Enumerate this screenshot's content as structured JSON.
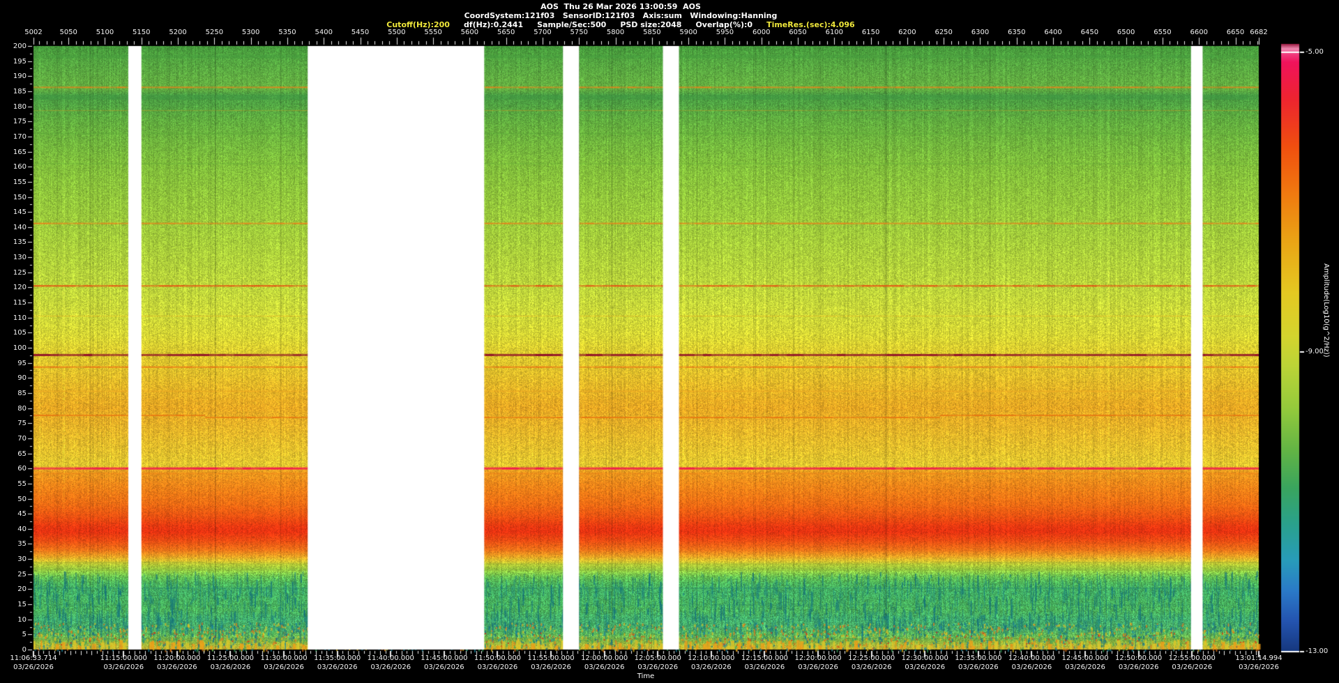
{
  "header": {
    "title_line": "AOS  Thu 26 Mar 2026 13:00:59  AOS",
    "config_line": "CoordSystem:121f03   SensorID:121f03   Axis:sum   Windowing:Hanning",
    "params": [
      {
        "text": "Cutoff(Hz):200",
        "color": "#efe73a"
      },
      {
        "text": "df(Hz):0.2441",
        "color": "#ffffff"
      },
      {
        "text": "Sample/Sec:500",
        "color": "#ffffff"
      },
      {
        "text": "PSD size:2048",
        "color": "#ffffff"
      },
      {
        "text": "Overlap(%):0",
        "color": "#ffffff"
      },
      {
        "text": "TimeRes.(sec):4.096",
        "color": "#efe73a"
      }
    ]
  },
  "chart_data": {
    "type": "heatmap",
    "title": "AOS vibration spectrogram",
    "x_axis": {
      "position": "top",
      "min": 5002,
      "max": 6682,
      "minor_step": 10,
      "ticks": [
        5002,
        5050,
        5100,
        5150,
        5200,
        5250,
        5300,
        5350,
        5400,
        5450,
        5500,
        5550,
        5600,
        5650,
        5700,
        5750,
        5800,
        5850,
        5900,
        5950,
        6000,
        6050,
        6100,
        6150,
        6200,
        6250,
        6300,
        6350,
        6400,
        6450,
        6500,
        6550,
        6600,
        6650,
        6682
      ]
    },
    "y_axis": {
      "min": 0,
      "max": 200,
      "major_step": 5,
      "ticks": [
        200,
        195,
        190,
        185,
        180,
        175,
        170,
        165,
        160,
        155,
        150,
        145,
        140,
        135,
        130,
        125,
        120,
        115,
        110,
        105,
        100,
        95,
        90,
        85,
        80,
        75,
        70,
        65,
        60,
        55,
        50,
        45,
        40,
        35,
        30,
        25,
        20,
        15,
        10,
        5,
        0
      ]
    },
    "time_axis": {
      "title": "Time",
      "start": "11:06:33.714",
      "end": "13:01:14.994",
      "labels": [
        {
          "t": "11:06:33.714",
          "d": "03/26/2026"
        },
        {
          "t": "11:15:00.000",
          "d": "03/26/2026"
        },
        {
          "t": "11:20:00.000",
          "d": "03/26/2026"
        },
        {
          "t": "11:25:00.000",
          "d": "03/26/2026"
        },
        {
          "t": "11:30:00.000",
          "d": "03/26/2026"
        },
        {
          "t": "11:35:00.000",
          "d": "03/26/2026"
        },
        {
          "t": "11:40:00.000",
          "d": "03/26/2026"
        },
        {
          "t": "11:45:00.000",
          "d": "03/26/2026"
        },
        {
          "t": "11:50:00.000",
          "d": "03/26/2026"
        },
        {
          "t": "11:55:00.000",
          "d": "03/26/2026"
        },
        {
          "t": "12:00:00.000",
          "d": "03/26/2026"
        },
        {
          "t": "12:05:00.000",
          "d": "03/26/2026"
        },
        {
          "t": "12:10:00.000",
          "d": "03/26/2026"
        },
        {
          "t": "12:15:00.000",
          "d": "03/26/2026"
        },
        {
          "t": "12:20:00.000",
          "d": "03/26/2026"
        },
        {
          "t": "12:25:00.000",
          "d": "03/26/2026"
        },
        {
          "t": "12:30:00.000",
          "d": "03/26/2026"
        },
        {
          "t": "12:35:00.000",
          "d": "03/26/2026"
        },
        {
          "t": "12:40:00.000",
          "d": "03/26/2026"
        },
        {
          "t": "12:45:00.000",
          "d": "03/26/2026"
        },
        {
          "t": "12:50:00.000",
          "d": "03/26/2026"
        },
        {
          "t": "12:55:00.000",
          "d": "03/26/2026"
        },
        {
          "t": "13:01:14.994",
          "d": "03/26/2026"
        }
      ]
    },
    "colorbar": {
      "label": "Amplitude(Log10(g^2/Hz))",
      "min": -13,
      "max": -5,
      "ticks": [
        {
          "value": -5,
          "label": "-5.00"
        },
        {
          "value": -9,
          "label": "-9.00"
        },
        {
          "value": -13,
          "label": "-13.00"
        }
      ],
      "gradient": [
        [
          0.0,
          "#9b1a40"
        ],
        [
          0.008,
          "#ee8ab2"
        ],
        [
          0.016,
          "#f04080"
        ],
        [
          0.03,
          "#f1135c"
        ],
        [
          0.09,
          "#ee2430"
        ],
        [
          0.17,
          "#f0500f"
        ],
        [
          0.25,
          "#f07c10"
        ],
        [
          0.33,
          "#eaa716"
        ],
        [
          0.41,
          "#e4c922"
        ],
        [
          0.48,
          "#d4d42e"
        ],
        [
          0.53,
          "#bcd437"
        ],
        [
          0.6,
          "#94ca3c"
        ],
        [
          0.67,
          "#62b445"
        ],
        [
          0.73,
          "#3aa55e"
        ],
        [
          0.79,
          "#2aa18c"
        ],
        [
          0.85,
          "#289cba"
        ],
        [
          0.9,
          "#2b7ac8"
        ],
        [
          0.95,
          "#2454b0"
        ],
        [
          1.0,
          "#16387e"
        ]
      ]
    },
    "gaps_x_units": [
      [
        5132,
        5150
      ],
      [
        5378,
        5620
      ],
      [
        5728,
        5750
      ],
      [
        5865,
        5887
      ],
      [
        6589,
        6605
      ]
    ],
    "spectral_profile": [
      {
        "f": 200,
        "c": "#459a3c",
        "amp": -10.2
      },
      {
        "f": 196,
        "c": "#52a541",
        "amp": -10.0
      },
      {
        "f": 190,
        "c": "#5fac42",
        "amp": -9.9
      },
      {
        "f": 186,
        "c": "#66b041",
        "amp": -9.8
      },
      {
        "f": 184,
        "c": "#4da044",
        "amp": -10.1
      },
      {
        "f": 181,
        "c": "#4fa243",
        "amp": -10.0
      },
      {
        "f": 176,
        "c": "#60ad40",
        "amp": -9.8
      },
      {
        "f": 168,
        "c": "#72b73e",
        "amp": -9.7
      },
      {
        "f": 160,
        "c": "#82bf3c",
        "amp": -9.6
      },
      {
        "f": 152,
        "c": "#8fc53c",
        "amp": -9.5
      },
      {
        "f": 144,
        "c": "#9aca3c",
        "amp": -9.4
      },
      {
        "f": 136,
        "c": "#a6ce3c",
        "amp": -9.3
      },
      {
        "f": 128,
        "c": "#b2d23c",
        "amp": -9.2
      },
      {
        "f": 120,
        "c": "#bed63c",
        "amp": -9.1
      },
      {
        "f": 112,
        "c": "#ccd93a",
        "amp": -9.0
      },
      {
        "f": 104,
        "c": "#d8d735",
        "amp": -8.8
      },
      {
        "f": 100,
        "c": "#ddd031",
        "amp": -8.7
      },
      {
        "f": 96,
        "c": "#e0c82e",
        "amp": -8.6
      },
      {
        "f": 90,
        "c": "#e4bd2a",
        "amp": -8.5
      },
      {
        "f": 84,
        "c": "#e8b126",
        "amp": -8.4
      },
      {
        "f": 80,
        "c": "#eaa823",
        "amp": -8.3
      },
      {
        "f": 76,
        "c": "#e9b027",
        "amp": -8.4
      },
      {
        "f": 70,
        "c": "#e7bb2b",
        "amp": -8.5
      },
      {
        "f": 64,
        "c": "#e5c42e",
        "amp": -8.6
      },
      {
        "f": 61,
        "c": "#e3c930",
        "amp": -8.6
      },
      {
        "f": 59,
        "c": "#ef9d1f",
        "amp": -7.7
      },
      {
        "f": 56,
        "c": "#f18c1b",
        "amp": -7.3
      },
      {
        "f": 52,
        "c": "#f37d17",
        "amp": -7.0
      },
      {
        "f": 48,
        "c": "#f26c14",
        "amp": -6.8
      },
      {
        "f": 44,
        "c": "#ef5212",
        "amp": -6.3
      },
      {
        "f": 41,
        "c": "#ec3a11",
        "amp": -5.9
      },
      {
        "f": 39,
        "c": "#eb3311",
        "amp": -5.8
      },
      {
        "f": 36,
        "c": "#ee4d13",
        "amp": -6.2
      },
      {
        "f": 33,
        "c": "#f17419",
        "amp": -6.9
      },
      {
        "f": 31,
        "c": "#eda023",
        "amp": -7.7
      },
      {
        "f": 29.5,
        "c": "#ddc22e",
        "amp": -8.6
      },
      {
        "f": 28,
        "c": "#b4cc38",
        "amp": -9.2
      },
      {
        "f": 26,
        "c": "#88c040",
        "amp": -9.7
      },
      {
        "f": 24,
        "c": "#5cae4a",
        "amp": -10.1
      },
      {
        "f": 22,
        "c": "#47a553",
        "amp": -10.3
      },
      {
        "f": 19,
        "c": "#3da05c",
        "amp": -10.4
      },
      {
        "f": 16,
        "c": "#41a156",
        "amp": -10.35
      },
      {
        "f": 13,
        "c": "#44a253",
        "amp": -10.3
      },
      {
        "f": 10,
        "c": "#3d9f62",
        "amp": -10.5
      },
      {
        "f": 7,
        "c": "#469f5c",
        "amp": -10.4
      },
      {
        "f": 5,
        "c": "#58a750",
        "amp": -10.1
      },
      {
        "f": 3,
        "c": "#7eb343",
        "amp": -9.7
      },
      {
        "f": 1.5,
        "c": "#a8ba3a",
        "amp": -9.2
      },
      {
        "f": 0,
        "c": "#bfae33",
        "amp": -8.9
      }
    ],
    "spectral_lines": [
      {
        "f": 196.5,
        "c": "#459c3e",
        "w": 5,
        "a": 0.45
      },
      {
        "f": 186.3,
        "c": "#e8821a",
        "w": 2,
        "a": 0.7,
        "amp": -7.5
      },
      {
        "f": 183,
        "c": "#3d9542",
        "w": 7,
        "a": 0.5
      },
      {
        "f": 178.6,
        "c": "#cf9a22",
        "w": 1,
        "a": 0.45
      },
      {
        "f": 171,
        "c": "#58a437",
        "w": 2,
        "a": 0.4
      },
      {
        "f": 161,
        "c": "#68ad38",
        "w": 2,
        "a": 0.35
      },
      {
        "f": 141.2,
        "c": "#e8821a",
        "w": 2,
        "a": 0.75,
        "amp": -7.5
      },
      {
        "f": 120.5,
        "c": "#e84c10",
        "w": 2,
        "a": 0.8,
        "amp": -6.4
      },
      {
        "f": 110.5,
        "c": "#edb01e",
        "w": 1,
        "a": 0.5
      },
      {
        "f": 97.6,
        "c": "#8e0d28",
        "w": 3,
        "a": 0.9,
        "amp": -4.7
      },
      {
        "f": 93.6,
        "c": "#ec7214",
        "w": 2,
        "a": 0.75,
        "amp": -7.0
      },
      {
        "f": 85.6,
        "c": "#eda922",
        "w": 2,
        "a": 0.6
      },
      {
        "f": 82.4,
        "c": "#eda822",
        "w": 1,
        "a": 0.55
      },
      {
        "f": 77.6,
        "c": "#e87812",
        "w": 2,
        "a": 0.8,
        "amp": -7.0,
        "steps": [
          [
            0,
            0.14,
            0
          ],
          [
            0.14,
            0.74,
            3
          ],
          [
            0.74,
            1,
            0
          ]
        ]
      },
      {
        "f": 60,
        "c": "#f1194e",
        "w": 3,
        "a": 0.95,
        "amp": -5.3
      },
      {
        "f": 58.3,
        "c": "#f08018",
        "w": 2,
        "a": 0.5
      },
      {
        "f": 28.8,
        "c": "#8aa832",
        "w": 1,
        "a": 0.5,
        "steps": [
          [
            0,
            0.14,
            0
          ],
          [
            0.14,
            0.74,
            2
          ],
          [
            0.74,
            1,
            0
          ]
        ]
      },
      {
        "f": 20.3,
        "c": "#2f9168",
        "w": 2,
        "a": 0.45
      },
      {
        "f": 14.8,
        "c": "#2f9168",
        "w": 1,
        "a": 0.4
      }
    ]
  }
}
